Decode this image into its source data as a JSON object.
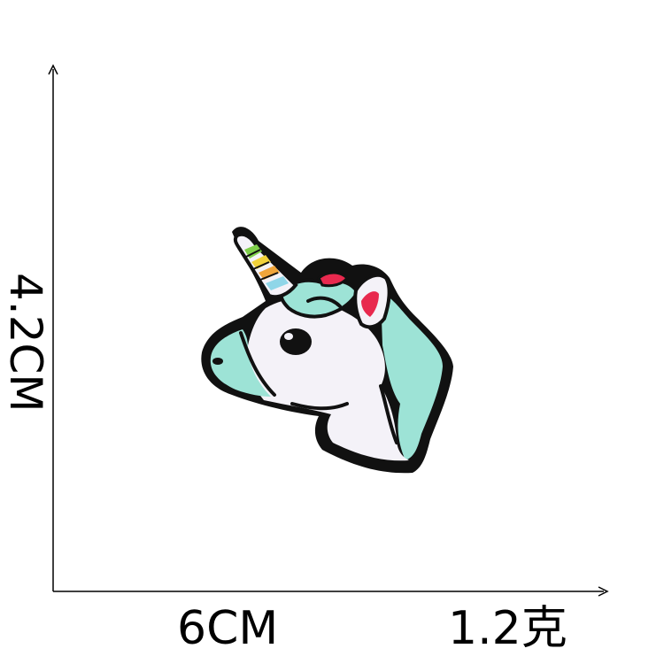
{
  "dimensions": {
    "width_label": "6CM",
    "height_label": "4.2CM",
    "weight_label": "1.2克"
  },
  "product": {
    "subject": "unicorn-head-embroidered-patch",
    "colors": {
      "outline": "#111111",
      "face": "#f4f2f8",
      "mane": "#9de3d6",
      "ear_inner": "#e8294e",
      "horn_base": "#f4f2f8",
      "horn_green": "#7fcf4a",
      "horn_yellow": "#f2d23a",
      "horn_orange": "#f0a53a",
      "horn_blue": "#8fd6e8"
    }
  }
}
